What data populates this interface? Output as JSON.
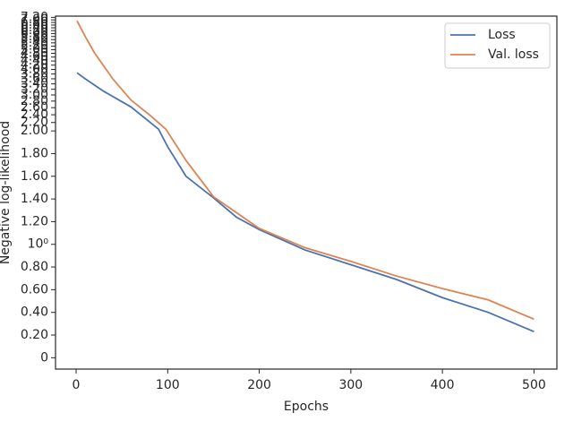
{
  "chart_data": {
    "type": "line",
    "xlabel": "Epochs",
    "ylabel": "Negative log-likelihood",
    "yscale": "symlog",
    "linthresh": 2,
    "xlim": [
      -22.5,
      525
    ],
    "xticks": [
      0,
      100,
      200,
      300,
      400,
      500
    ],
    "ylim": [
      -0.1,
      7.3
    ],
    "yticks": [
      0,
      {
        "value": 0.2,
        "label": "0.20"
      },
      {
        "value": 0.4,
        "label": "0.40"
      },
      {
        "value": 0.6,
        "label": "0.60"
      },
      {
        "value": 0.8,
        "label": "0.80"
      },
      {
        "value": 1,
        "label": "10⁰"
      },
      {
        "value": 1.2,
        "label": "1.20"
      },
      {
        "value": 1.4,
        "label": "1.40"
      },
      {
        "value": 1.6,
        "label": "1.60"
      },
      {
        "value": 1.8,
        "label": "1.80"
      },
      {
        "value": 2,
        "label": "2.00"
      },
      {
        "value": 2.2,
        "label": "2.20"
      },
      {
        "value": 2.4,
        "label": "2.40"
      },
      {
        "value": 2.6,
        "label": "2.60"
      },
      {
        "value": 2.8,
        "label": "2.80"
      },
      {
        "value": 3,
        "label": "3.00"
      },
      {
        "value": 3.2,
        "label": "3.20"
      },
      {
        "value": 3.4,
        "label": "3.40"
      },
      {
        "value": 3.6,
        "label": "3.60"
      },
      {
        "value": 3.8,
        "label": "3.80"
      },
      {
        "value": 4,
        "label": "4.00"
      },
      {
        "value": 4.2,
        "label": "4.20"
      },
      {
        "value": 4.4,
        "label": "4.40"
      },
      {
        "value": 4.6,
        "label": "4.60"
      },
      {
        "value": 4.8,
        "label": "4.80"
      },
      {
        "value": 5,
        "label": "5.00"
      },
      {
        "value": 5.2,
        "label": "5.20"
      },
      {
        "value": 5.4,
        "label": "5.40"
      },
      {
        "value": 5.6,
        "label": "5.60"
      },
      {
        "value": 5.8,
        "label": "5.80"
      },
      {
        "value": 6,
        "label": "6.00"
      },
      {
        "value": 6.2,
        "label": "6.20"
      },
      {
        "value": 6.4,
        "label": "6.40"
      },
      {
        "value": 6.6,
        "label": "6.60"
      },
      {
        "value": 6.8,
        "label": "6.80"
      },
      {
        "value": 7,
        "label": "7.00"
      },
      {
        "value": 7.2,
        "label": "7.20"
      }
    ],
    "legend": "upper right",
    "series": [
      {
        "name": "Loss",
        "color": "#4c72b0",
        "x": [
          1,
          10,
          30,
          60,
          90,
          100,
          120,
          150,
          175,
          200,
          250,
          300,
          350,
          400,
          450,
          500
        ],
        "values": [
          3.85,
          3.6,
          3.13,
          2.62,
          2.04,
          1.86,
          1.6,
          1.41,
          1.24,
          1.13,
          0.95,
          0.82,
          0.69,
          0.53,
          0.4,
          0.23
        ]
      },
      {
        "name": "Val. loss",
        "color": "#dd8452",
        "x": [
          1,
          10,
          20,
          40,
          60,
          80,
          98,
          120,
          150,
          200,
          250,
          300,
          350,
          400,
          450,
          500
        ],
        "values": [
          6.92,
          5.8,
          4.83,
          3.6,
          2.83,
          2.4,
          2.04,
          1.74,
          1.42,
          1.14,
          0.97,
          0.85,
          0.72,
          0.61,
          0.51,
          0.34
        ]
      }
    ]
  }
}
